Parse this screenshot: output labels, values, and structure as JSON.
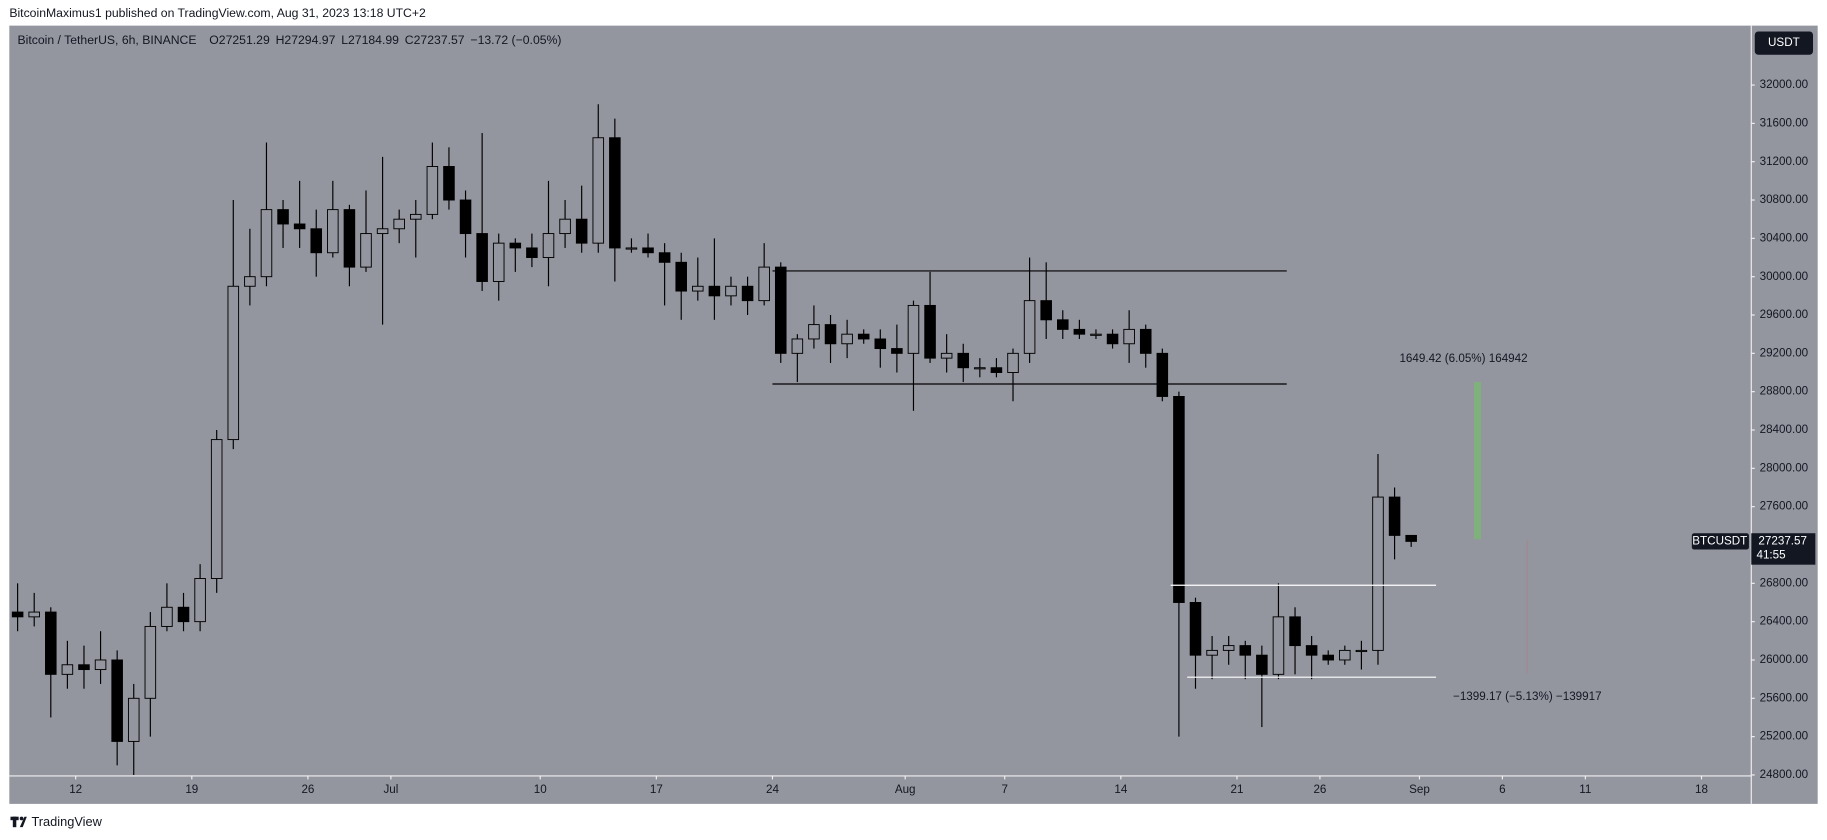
{
  "header": {
    "publisher": "BitcoinMaximus1 published on TradingView.com, Aug 31, 2023 13:18 UTC+2"
  },
  "chart_data": {
    "type": "candlestick",
    "title": "Bitcoin / TetherUS, 6h, BINANCE",
    "ohlc_header": {
      "labels": [
        "O",
        "H",
        "L",
        "C"
      ],
      "values": [
        27251.29,
        27294.97,
        27184.99,
        27237.57
      ],
      "change": "−13.72 (−0.05%)"
    },
    "currency": "USDT",
    "symbol": "BTCUSDT",
    "countdown": "41:55",
    "up_color": "#94969f",
    "down_color": "#000000",
    "x": [
      "2023-06-08",
      "2023-06-09",
      "2023-06-10",
      "2023-06-11",
      "2023-06-12",
      "2023-06-13",
      "2023-06-14",
      "2023-06-15",
      "2023-06-16",
      "2023-06-17",
      "2023-06-18",
      "2023-06-19",
      "2023-06-20",
      "2023-06-21",
      "2023-06-22",
      "2023-06-23",
      "2023-06-24",
      "2023-06-25",
      "2023-06-26",
      "2023-06-27",
      "2023-06-28",
      "2023-06-29",
      "2023-06-30",
      "2023-07-01",
      "2023-07-02",
      "2023-07-03",
      "2023-07-04",
      "2023-07-05",
      "2023-07-06",
      "2023-07-07",
      "2023-07-08",
      "2023-07-09",
      "2023-07-10",
      "2023-07-11",
      "2023-07-12",
      "2023-07-13",
      "2023-07-14",
      "2023-07-15",
      "2023-07-16",
      "2023-07-17",
      "2023-07-18",
      "2023-07-19",
      "2023-07-20",
      "2023-07-21",
      "2023-07-22",
      "2023-07-23",
      "2023-07-24",
      "2023-07-25",
      "2023-07-26",
      "2023-07-27",
      "2023-07-28",
      "2023-07-29",
      "2023-07-30",
      "2023-07-31",
      "2023-08-01",
      "2023-08-02",
      "2023-08-03",
      "2023-08-04",
      "2023-08-05",
      "2023-08-06",
      "2023-08-07",
      "2023-08-08",
      "2023-08-09",
      "2023-08-10",
      "2023-08-11",
      "2023-08-12",
      "2023-08-13",
      "2023-08-14",
      "2023-08-15",
      "2023-08-16",
      "2023-08-17",
      "2023-08-18",
      "2023-08-19",
      "2023-08-20",
      "2023-08-21",
      "2023-08-22",
      "2023-08-23",
      "2023-08-24",
      "2023-08-25",
      "2023-08-26",
      "2023-08-27",
      "2023-08-28",
      "2023-08-29",
      "2023-08-30",
      "2023-08-31"
    ],
    "open": [
      26500,
      26450,
      26500,
      25850,
      25950,
      25900,
      26000,
      25150,
      25600,
      26350,
      26550,
      26400,
      26850,
      28300,
      29900,
      30000,
      30700,
      30550,
      30500,
      30250,
      30700,
      30100,
      30450,
      30500,
      30600,
      30650,
      31150,
      30800,
      30450,
      29950,
      30350,
      30300,
      30200,
      30450,
      30600,
      30350,
      31450,
      30300,
      30300,
      30250,
      30150,
      29850,
      29900,
      29800,
      29900,
      29750,
      30100,
      29200,
      29350,
      29500,
      29300,
      29400,
      29350,
      29250,
      29200,
      29700,
      29150,
      29200,
      29050,
      29050,
      29000,
      29200,
      29750,
      29550,
      29450,
      29400,
      29400,
      29300,
      29450,
      29200,
      28750,
      26600,
      26050,
      26100,
      26150,
      26050,
      25850,
      26450,
      26150,
      26050,
      26000,
      26100,
      26100,
      27700,
      27300
    ],
    "high": [
      26800,
      26700,
      26550,
      26200,
      26150,
      26300,
      26100,
      25750,
      26500,
      26800,
      26700,
      27000,
      28400,
      30800,
      30500,
      31400,
      30800,
      31000,
      30700,
      31000,
      30750,
      30900,
      31250,
      30700,
      30800,
      31400,
      31350,
      30900,
      31500,
      30450,
      30400,
      30450,
      31000,
      30800,
      30950,
      31800,
      31650,
      30400,
      30450,
      30350,
      30250,
      30200,
      30400,
      30000,
      30000,
      30350,
      30150,
      29400,
      29700,
      29600,
      29550,
      29450,
      29450,
      29500,
      29750,
      30050,
      29400,
      29300,
      29150,
      29150,
      29250,
      30200,
      30150,
      29650,
      29550,
      29450,
      29450,
      29650,
      29500,
      29250,
      28800,
      26650,
      26250,
      26250,
      26200,
      26150,
      26800,
      26550,
      26250,
      26100,
      26150,
      26200,
      28150,
      27800,
      27300
    ],
    "low": [
      26300,
      26350,
      25400,
      25700,
      25700,
      25750,
      24900,
      24800,
      25200,
      26300,
      26300,
      26300,
      26700,
      28200,
      29700,
      29900,
      30300,
      30300,
      30000,
      30200,
      29900,
      30050,
      29500,
      30350,
      30200,
      30600,
      30700,
      30200,
      29850,
      29750,
      30050,
      30100,
      29900,
      30300,
      30250,
      30250,
      29950,
      30250,
      30200,
      29700,
      29550,
      29750,
      29550,
      29700,
      29600,
      29700,
      29100,
      28900,
      29250,
      29100,
      29150,
      29300,
      29050,
      29000,
      28600,
      29100,
      29000,
      28900,
      28950,
      28950,
      28700,
      29100,
      29350,
      29350,
      29350,
      29350,
      29250,
      29100,
      29050,
      28700,
      25200,
      25700,
      25800,
      25950,
      25800,
      25300,
      25800,
      25850,
      25800,
      25950,
      25950,
      25900,
      25950,
      27050,
      27180
    ],
    "close": [
      26450,
      26500,
      25850,
      25950,
      25900,
      26000,
      25150,
      25600,
      26350,
      26550,
      26400,
      26850,
      28300,
      29900,
      30000,
      30700,
      30550,
      30500,
      30250,
      30700,
      30100,
      30450,
      30500,
      30600,
      30650,
      31150,
      30800,
      30450,
      29950,
      30350,
      30300,
      30200,
      30450,
      30600,
      30350,
      31450,
      30300,
      30300,
      30250,
      30150,
      29850,
      29900,
      29800,
      29900,
      29750,
      30100,
      29200,
      29350,
      29500,
      29300,
      29400,
      29350,
      29250,
      29200,
      29700,
      29150,
      29200,
      29050,
      29050,
      29000,
      29200,
      29750,
      29550,
      29450,
      29400,
      29400,
      29300,
      29450,
      29200,
      28750,
      26600,
      26050,
      26100,
      26150,
      26050,
      25850,
      26450,
      26150,
      26050,
      26000,
      26100,
      26100,
      27700,
      27300,
      27237.57
    ],
    "xlim": [
      "2023-06-08",
      "2023-09-21"
    ],
    "ylim": [
      24790,
      32620
    ],
    "xticks": [
      {
        "value": "2023-06-12",
        "label": "12"
      },
      {
        "value": "2023-06-19",
        "label": "19"
      },
      {
        "value": "2023-06-26",
        "label": "26"
      },
      {
        "value": "2023-07-01",
        "label": "Jul"
      },
      {
        "value": "2023-07-10",
        "label": "10"
      },
      {
        "value": "2023-07-17",
        "label": "17"
      },
      {
        "value": "2023-07-24",
        "label": "24"
      },
      {
        "value": "2023-08-01",
        "label": "Aug"
      },
      {
        "value": "2023-08-07",
        "label": "7"
      },
      {
        "value": "2023-08-14",
        "label": "14"
      },
      {
        "value": "2023-08-21",
        "label": "21"
      },
      {
        "value": "2023-08-26",
        "label": "26"
      },
      {
        "value": "2023-09-01",
        "label": "Sep"
      },
      {
        "value": "2023-09-06",
        "label": "6"
      },
      {
        "value": "2023-09-11",
        "label": "11"
      },
      {
        "value": "2023-09-18",
        "label": "18"
      }
    ],
    "yticks": [
      {
        "value": 24800,
        "label": "24800.00"
      },
      {
        "value": 25200,
        "label": "25200.00"
      },
      {
        "value": 25600,
        "label": "25600.00"
      },
      {
        "value": 26000,
        "label": "26000.00"
      },
      {
        "value": 26400,
        "label": "26400.00"
      },
      {
        "value": 26800,
        "label": "26800.00"
      },
      {
        "value": 27200,
        "label": "27200.00"
      },
      {
        "value": 27600,
        "label": "27600.00"
      },
      {
        "value": 28000,
        "label": "28000.00"
      },
      {
        "value": 28400,
        "label": "28400.00"
      },
      {
        "value": 28800,
        "label": "28800.00"
      },
      {
        "value": 29200,
        "label": "29200.00"
      },
      {
        "value": 29600,
        "label": "29600.00"
      },
      {
        "value": 30000,
        "label": "30000.00"
      },
      {
        "value": 30400,
        "label": "30400.00"
      },
      {
        "value": 30800,
        "label": "30800.00"
      },
      {
        "value": 31200,
        "label": "31200.00"
      },
      {
        "value": 31600,
        "label": "31600.00"
      },
      {
        "value": 32000,
        "label": "32000.00"
      }
    ],
    "levels": [
      {
        "price": 30060,
        "start": "2023-07-24",
        "end": "2023-08-24",
        "color": "#000000"
      },
      {
        "price": 28880,
        "start": "2023-07-24",
        "end": "2023-08-24",
        "color": "#000000"
      },
      {
        "price": 26780,
        "start": "2023-08-17",
        "end": "2023-09-02",
        "color": "#ffffff"
      },
      {
        "price": 25820,
        "start": "2023-08-18",
        "end": "2023-09-02",
        "color": "#ffffff"
      }
    ],
    "measures": [
      {
        "label": "1649.42 (6.05%) 164942",
        "date": "2023-09-04",
        "from": 27260,
        "to": 28900,
        "color": "#7fb27a"
      },
      {
        "label": "−1399.17 (−5.13%) −139917",
        "date": "2023-09-07",
        "from": 27260,
        "to": 25860,
        "color": "#a08a8f"
      }
    ]
  },
  "footer": {
    "brand": "TradingView"
  }
}
